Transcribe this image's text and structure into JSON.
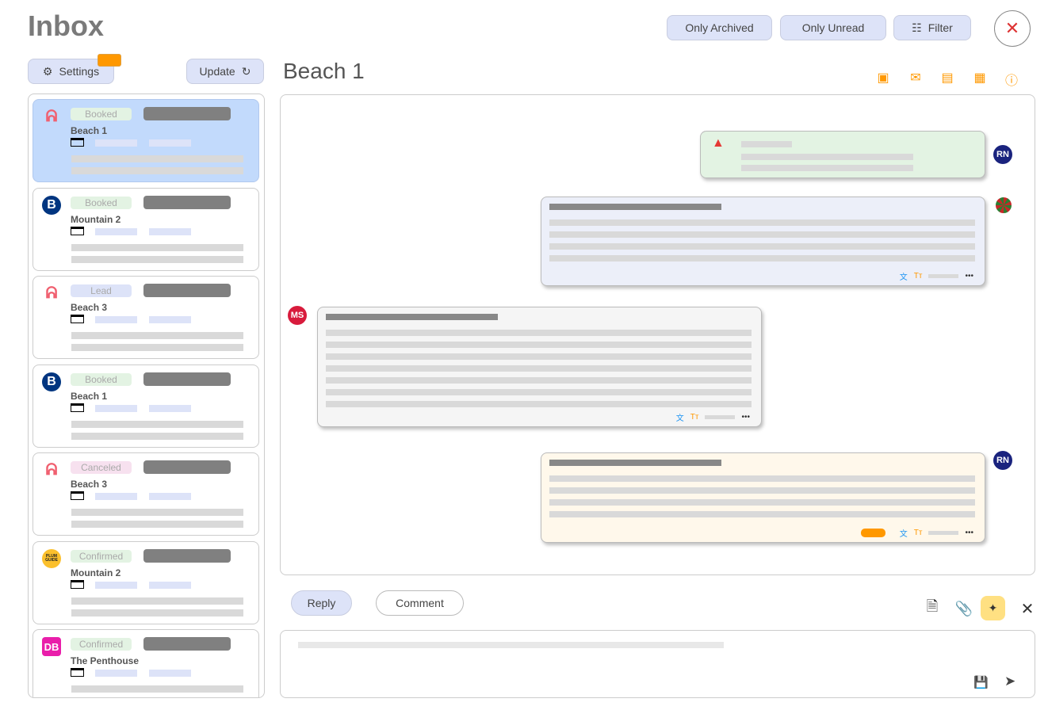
{
  "header": {
    "title": "Inbox",
    "only_archived": "Only Archived",
    "only_unread": "Only Unread",
    "filter": "Filter",
    "close": "✕"
  },
  "sidebar": {
    "settings": "Settings",
    "update": "Update",
    "cards": [
      {
        "logo": "airbnb",
        "status": "Booked",
        "name": "Beach 1",
        "selected": true
      },
      {
        "logo": "booking",
        "status": "Booked",
        "name": "Mountain 2"
      },
      {
        "logo": "airbnb",
        "status": "Lead",
        "name": "Beach 3"
      },
      {
        "logo": "booking",
        "status": "Booked",
        "name": "Beach 1"
      },
      {
        "logo": "airbnb",
        "status": "Canceled",
        "name": "Beach 3"
      },
      {
        "logo": "plumguide",
        "status": "Confirmed",
        "name": "Mountain 2",
        "logo_text": "PLUM GUIDE"
      },
      {
        "logo": "direct",
        "status": "Confirmed",
        "name": "The Penthouse",
        "logo_text": "DB"
      }
    ]
  },
  "conversation": {
    "title": "Beach 1",
    "action_icons": [
      "archive-icon",
      "mark-unread-icon",
      "message-icon",
      "calendar-icon",
      "info-icon"
    ],
    "messages": [
      {
        "type": "alert",
        "avatar": "RN",
        "side": "right"
      },
      {
        "type": "guest",
        "avatar": "image",
        "side": "right"
      },
      {
        "type": "host",
        "avatar": "MS",
        "side": "left"
      },
      {
        "type": "note",
        "avatar": "RN",
        "side": "right"
      }
    ]
  },
  "composer": {
    "reply": "Reply",
    "comment": "Comment"
  },
  "colors": {
    "accent": "#ff9800",
    "button_bg": "#dde3f8",
    "selected_card": "#c2dafc",
    "navy": "#1a237e",
    "red": "#d81b3c"
  }
}
